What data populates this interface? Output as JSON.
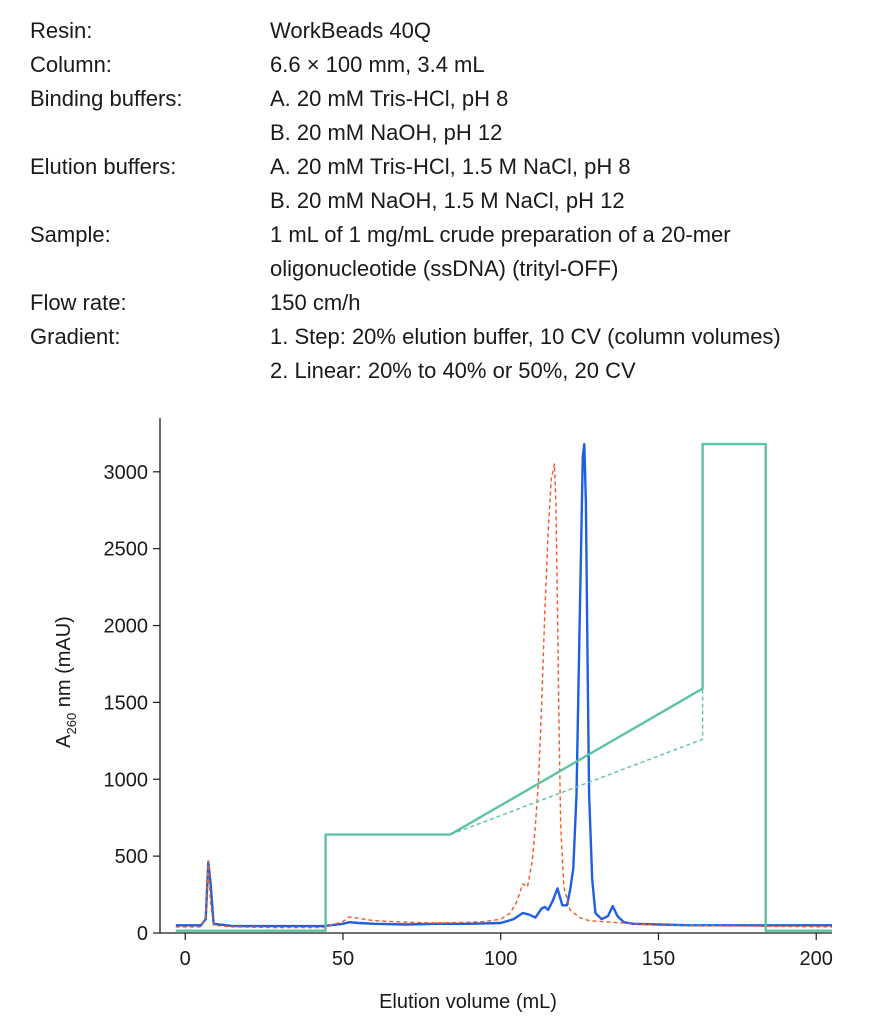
{
  "parameters": [
    {
      "label": "Resin:",
      "values": [
        "WorkBeads 40Q"
      ]
    },
    {
      "label": "Column:",
      "values": [
        "6.6 × 100 mm, 3.4 mL"
      ]
    },
    {
      "label": "Binding buffers:",
      "values": [
        "A. 20 mM Tris-HCl, pH 8",
        "B. 20 mM NaOH, pH 12"
      ]
    },
    {
      "label": "Elution buffers:",
      "values": [
        "A. 20 mM Tris-HCl, 1.5 M NaCl, pH 8",
        "B. 20 mM NaOH, 1.5 M NaCl, pH 12"
      ]
    },
    {
      "label": "Sample:",
      "values": [
        "1 mL of 1 mg/mL crude preparation of a 20-mer",
        "oligonucleotide (ssDNA) (trityl-OFF)"
      ]
    },
    {
      "label": "Flow rate:",
      "values": [
        "150 cm/h"
      ]
    },
    {
      "label": "Gradient:",
      "values": [
        "1. Step: 20% elution buffer, 10 CV (column volumes)",
        "2. Linear: 20% to 40% or 50%, 20 CV"
      ]
    }
  ],
  "chart_data": {
    "type": "line",
    "xlabel": "Elution volume (mL)",
    "ylabel": {
      "main": "A",
      "subscript": "260",
      "suffix": " nm (mAU)"
    },
    "xlim": [
      -8,
      205
    ],
    "ylim": [
      0,
      3350
    ],
    "xticks": [
      0,
      50,
      100,
      150,
      200
    ],
    "yticks": [
      0,
      500,
      1000,
      1500,
      2000,
      2500,
      3000
    ],
    "grid": false,
    "series": [
      {
        "color": "#1f5fe0",
        "dash": "solid",
        "x": [
          -3,
          5,
          6.5,
          7.3,
          8,
          9,
          15,
          30,
          44,
          50,
          52,
          55,
          60,
          70,
          80,
          90,
          100,
          104,
          107,
          109,
          111,
          113,
          114,
          115,
          116.5,
          118,
          119.5,
          121,
          122,
          123,
          124,
          125,
          126,
          126.5,
          127,
          127.5,
          128,
          129,
          130,
          132,
          134,
          135.5,
          137,
          139,
          142,
          150,
          160,
          205
        ],
        "y": [
          50,
          50,
          90,
          460,
          330,
          60,
          45,
          45,
          45,
          60,
          70,
          65,
          60,
          55,
          60,
          60,
          65,
          90,
          130,
          120,
          100,
          160,
          170,
          150,
          210,
          290,
          180,
          180,
          280,
          420,
          900,
          2000,
          3100,
          3180,
          2800,
          1800,
          900,
          350,
          130,
          90,
          110,
          175,
          110,
          70,
          60,
          55,
          50,
          50
        ]
      },
      {
        "color": "#f05a28",
        "dash": "dashed",
        "x": [
          -3,
          5,
          6.5,
          7.3,
          8,
          9,
          15,
          30,
          44,
          50,
          52,
          55,
          60,
          70,
          80,
          90,
          95,
          100,
          103,
          105,
          107,
          108.5,
          110,
          111,
          112,
          113,
          114,
          115,
          116,
          117,
          117.5,
          118,
          118.5,
          119,
          120,
          122,
          125,
          128,
          135,
          150,
          205
        ],
        "y": [
          40,
          40,
          100,
          470,
          200,
          50,
          40,
          35,
          35,
          75,
          105,
          95,
          80,
          70,
          65,
          70,
          75,
          90,
          130,
          200,
          320,
          300,
          470,
          700,
          1000,
          1500,
          2100,
          2600,
          2950,
          3050,
          2800,
          2100,
          1300,
          700,
          300,
          150,
          100,
          80,
          70,
          50,
          40
        ]
      },
      {
        "color": "#5cc4a2",
        "dash": "solid",
        "x": [
          -3,
          44.5,
          44.5,
          84,
          164,
          164,
          184,
          184,
          205
        ],
        "y": [
          15,
          15,
          640,
          640,
          1590,
          3180,
          3180,
          15,
          15
        ]
      },
      {
        "color": "#5cc4a2",
        "dash": "dashed",
        "x": [
          -3,
          44.5,
          44.5,
          84,
          164,
          164,
          184,
          184,
          205
        ],
        "y": [
          15,
          15,
          640,
          640,
          1260,
          3180,
          3180,
          15,
          15
        ]
      }
    ]
  }
}
